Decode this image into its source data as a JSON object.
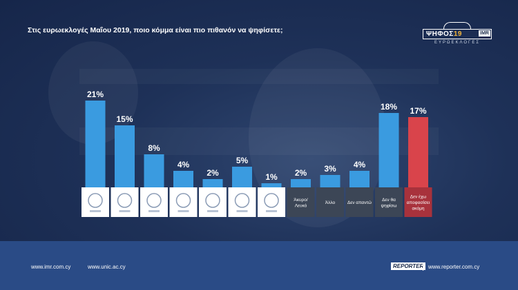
{
  "header": {
    "title": "Στις ευρωεκλογές Μαΐου 2019, ποιο κόμμα είναι πιο πιθανόν να ψηφίσετε;"
  },
  "logo": {
    "name_main": "ΨΗΦΟΣ",
    "name_year": "19",
    "badge": "IMR",
    "subtitle": "ΕΥΡΩΕΚΛΟΓΕΣ"
  },
  "chart_data": {
    "type": "bar",
    "title": "Στις ευρωεκλογές Μαΐου 2019, ποιο κόμμα είναι πιο πιθανόν να ψηφίσετε;",
    "xlabel": "",
    "ylabel": "",
    "ylim": [
      0,
      25
    ],
    "categories": [
      {
        "label": "",
        "logo": "party-logo-1"
      },
      {
        "label": "",
        "logo": "party-logo-2"
      },
      {
        "label": "",
        "logo": "party-logo-3"
      },
      {
        "label": "",
        "logo": "party-logo-4"
      },
      {
        "label": "",
        "logo": "party-logo-5"
      },
      {
        "label": "",
        "logo": "party-logo-6"
      },
      {
        "label": "",
        "logo": "party-logo-7"
      },
      {
        "label": "Άκυρο/ Λευκό",
        "logo": ""
      },
      {
        "label": "Άλλο",
        "logo": ""
      },
      {
        "label": "Δεν απαντώ",
        "logo": ""
      },
      {
        "label": "Δεν θα ψηφίσω",
        "logo": ""
      },
      {
        "label": "Δεν έχω αποφασίσει ακόμη",
        "logo": ""
      }
    ],
    "values": [
      21,
      15,
      8,
      4,
      2,
      5,
      1,
      2,
      3,
      4,
      18,
      17
    ],
    "labels": [
      "21%",
      "15%",
      "8%",
      "4%",
      "2%",
      "5%",
      "1%",
      "2%",
      "3%",
      "4%",
      "18%",
      "17%"
    ],
    "colors": {
      "bar": "#3a9be0",
      "highlight_bar": "#d9444b",
      "label_cell_dark": "#3c4656",
      "label_cell_highlight": "#a8323c",
      "logo_cell": "#ffffff"
    },
    "highlight_index": 11
  },
  "footer": {
    "link_imr": "www.imr.com.cy",
    "link_unic": "www.unic.ac.cy",
    "brand": "REPORTER",
    "link_reporter": "www.reporter.com.cy"
  }
}
